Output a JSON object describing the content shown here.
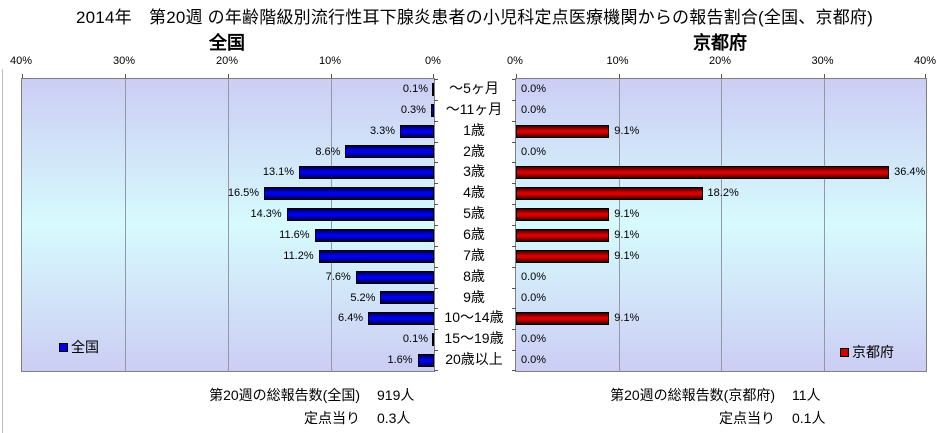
{
  "header": {
    "title": "2014年　第20週 の年齢階級別流行性耳下腺炎患者の小児科定点医療機関からの報告割合(全国、京都府)"
  },
  "left_chart": {
    "subtitle": "全国",
    "legend_label": "全国",
    "axis_ticks": [
      "40%",
      "30%",
      "20%",
      "10%",
      "0%"
    ],
    "footer": {
      "total_label": "第20週の総報告数(全国)",
      "total_value": "919人",
      "per_station_label": "定点当り",
      "per_station_value": "0.3人"
    }
  },
  "right_chart": {
    "subtitle": "京都府",
    "legend_label": "京都府",
    "axis_ticks": [
      "0%",
      "10%",
      "20%",
      "30%",
      "40%"
    ],
    "footer": {
      "total_label": "第20週の総報告数(京都府)",
      "total_value": "11人",
      "per_station_label": "定点当り",
      "per_station_value": "0.1人"
    }
  },
  "colors": {
    "national_bar": "#0101f0",
    "kyoto_bar": "#d80000",
    "plot_bg_top": "#cccdf4",
    "plot_bg_mid": "#d6fbfd",
    "gridline": "#9696a6",
    "plot_border": "#808080"
  },
  "chart_data": {
    "type": "bar",
    "orientation": "horizontal",
    "title": "2014年　第20週 の年齢階級別流行性耳下腺炎患者の小児科定点医療機関からの報告割合(全国、京都府)",
    "categories": [
      "～5ヶ月",
      "～11ヶ月",
      "1歳",
      "2歳",
      "3歳",
      "4歳",
      "5歳",
      "6歳",
      "7歳",
      "8歳",
      "9歳",
      "10～14歳",
      "15～19歳",
      "20歳以上"
    ],
    "unit": "%",
    "xlim": [
      0,
      40
    ],
    "x_tick_interval": 10,
    "value_label_format": "0.0%",
    "series": [
      {
        "name": "全国",
        "color": "#0101f0",
        "axis_reversed": true,
        "panel": "left",
        "values": [
          0.1,
          0.3,
          3.3,
          8.6,
          13.1,
          16.5,
          14.3,
          11.6,
          11.2,
          7.6,
          5.2,
          6.4,
          0.1,
          1.6
        ]
      },
      {
        "name": "京都府",
        "color": "#d80000",
        "axis_reversed": false,
        "panel": "right",
        "values": [
          0.0,
          0.0,
          9.1,
          0.0,
          36.4,
          18.2,
          9.1,
          9.1,
          9.1,
          0.0,
          0.0,
          9.1,
          0.0,
          0.0
        ]
      }
    ],
    "totals": {
      "national_total_reports": 919,
      "national_per_station": 0.3,
      "kyoto_total_reports": 11,
      "kyoto_per_station": 0.1
    },
    "legend_position": "inside-bottom"
  }
}
